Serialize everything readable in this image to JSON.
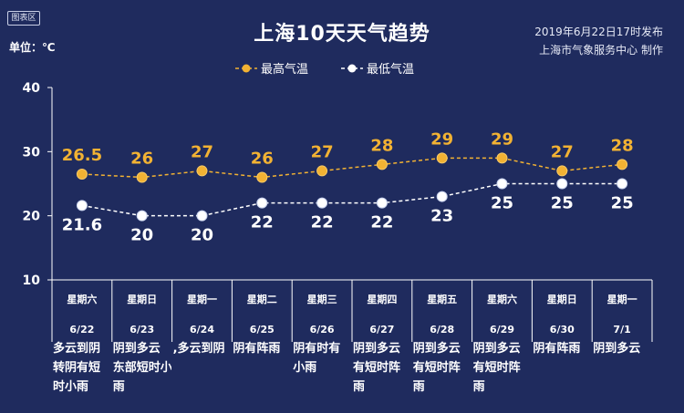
{
  "badge": "图表区",
  "unit_label": "单位：℃",
  "title": "上海10天天气趋势",
  "publish_time": "2019年6月22日17时发布",
  "issuer": "上海市气象服务中心 制作",
  "colors": {
    "background": "#1f2b5e",
    "high": "#f2b233",
    "low": "#ffffff",
    "axis": "#ffffff"
  },
  "chart_data": {
    "type": "line",
    "categories": [
      "6/22",
      "6/23",
      "6/24",
      "6/25",
      "6/26",
      "6/27",
      "6/28",
      "6/29",
      "6/30",
      "7/1"
    ],
    "weekdays": [
      "星期六",
      "星期日",
      "星期一",
      "星期二",
      "星期三",
      "星期四",
      "星期五",
      "星期六",
      "星期日",
      "星期一"
    ],
    "series": [
      {
        "name": "最高气温",
        "values": [
          26.5,
          26,
          27,
          26,
          27,
          28,
          29,
          29,
          27,
          28
        ],
        "labels": [
          "26.5",
          "26",
          "27",
          "26",
          "27",
          "28",
          "29",
          "29",
          "27",
          "28"
        ]
      },
      {
        "name": "最低气温",
        "values": [
          21.6,
          20,
          20,
          22,
          22,
          22,
          23,
          25,
          25,
          25
        ],
        "labels": [
          "21.6",
          "20",
          "20",
          "22",
          "22",
          "22",
          "23",
          "25",
          "25",
          "25"
        ]
      }
    ],
    "yticks": [
      "10",
      "20",
      "30",
      "40"
    ],
    "ylim": [
      10,
      40
    ],
    "weather": [
      [
        "多云到阴",
        "转阴有短",
        "时小雨"
      ],
      [
        "阴到多云",
        "东部短时小",
        "雨"
      ],
      [
        ",多云到阴"
      ],
      [
        "阴有阵雨"
      ],
      [
        "阴有时有",
        "小雨"
      ],
      [
        "阴到多云",
        "有短时阵",
        "雨"
      ],
      [
        "阴到多云",
        "有短时阵",
        "雨"
      ],
      [
        "阴到多云",
        "有短时阵",
        "雨"
      ],
      [
        "阴有阵雨"
      ],
      [
        "阴到多云"
      ]
    ],
    "legend_position": "top-center",
    "grid": false
  }
}
